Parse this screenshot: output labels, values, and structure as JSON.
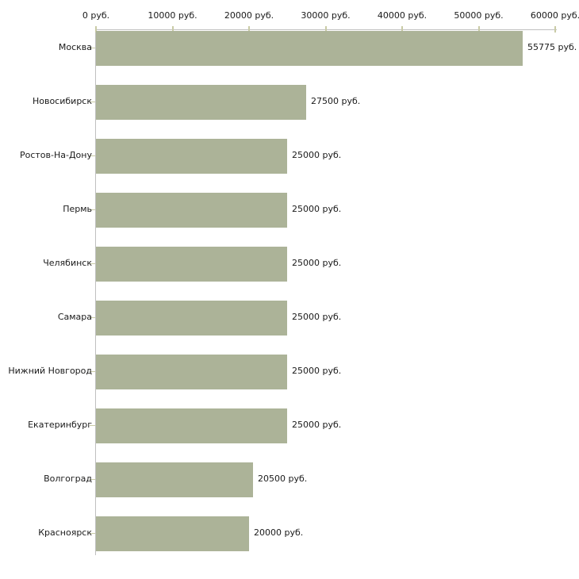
{
  "chart_data": {
    "type": "bar",
    "orientation": "horizontal",
    "title": "",
    "xlabel": "",
    "ylabel": "",
    "unit": "руб.",
    "xlim": [
      0,
      60000
    ],
    "x_ticks": [
      0,
      10000,
      20000,
      30000,
      40000,
      50000,
      60000
    ],
    "x_tick_labels": [
      "0 руб.",
      "10000 руб.",
      "20000 руб.",
      "30000 руб.",
      "40000 руб.",
      "50000 руб.",
      "60000 руб."
    ],
    "categories": [
      "Москва",
      "Новосибирск",
      "Ростов-На-Дону",
      "Пермь",
      "Челябинск",
      "Самара",
      "Нижний Новгород",
      "Екатеринбург",
      "Волгоград",
      "Красноярск"
    ],
    "values": [
      55775,
      27500,
      25000,
      25000,
      25000,
      25000,
      25000,
      25000,
      20500,
      20000
    ],
    "value_labels": [
      "55775 руб.",
      "27500 руб.",
      "25000 руб.",
      "25000 руб.",
      "25000 руб.",
      "25000 руб.",
      "25000 руб.",
      "25000 руб.",
      "20500 руб.",
      "20000 руб."
    ],
    "grid": false,
    "legend": false,
    "colors": {
      "bar": "#acb398",
      "axis_line": "#c0c0c0",
      "tick": "#c9cba6",
      "text": "#1a1a1a",
      "background": "#ffffff"
    }
  }
}
